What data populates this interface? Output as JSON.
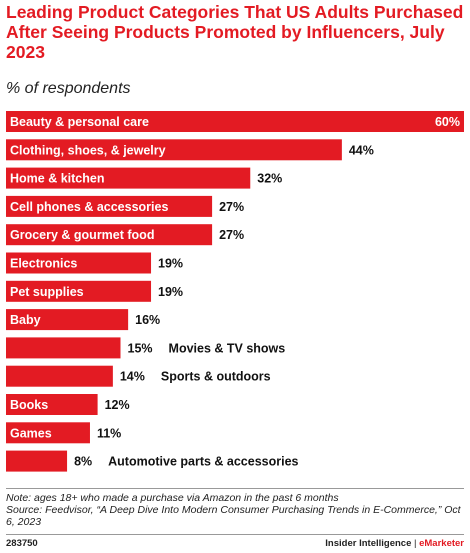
{
  "header": {
    "title": "Leading Product Categories That US Adults Purchased After Seeing Products Promoted by Influencers, July 2023",
    "subtitle": "% of respondents"
  },
  "chart_data": {
    "type": "bar",
    "orientation": "horizontal",
    "categories": [
      "Beauty & personal care",
      "Clothing, shoes, & jewelry",
      "Home & kitchen",
      "Cell phones & accessories",
      "Grocery & gourmet food",
      "Electronics",
      "Pet supplies",
      "Baby",
      "Movies & TV shows",
      "Sports & outdoors",
      "Books",
      "Games",
      "Automotive parts & accessories"
    ],
    "values": [
      60,
      44,
      32,
      27,
      27,
      19,
      19,
      16,
      15,
      14,
      12,
      11,
      8
    ],
    "value_labels": [
      "60%",
      "44%",
      "32%",
      "27%",
      "27%",
      "19%",
      "19%",
      "16%",
      "15%",
      "14%",
      "12%",
      "11%",
      "8%"
    ],
    "xlim": [
      0,
      60
    ],
    "bar_color": "#e31b23",
    "title": "Leading Product Categories That US Adults Purchased After Seeing Products Promoted by Influencers, July 2023",
    "subtitle": "% of respondents",
    "xlabel": "",
    "ylabel": ""
  },
  "footer": {
    "note": "Note: ages 18+ who made a purchase via Amazon in the past 6 months",
    "source": "Source: Feedvisor, “A Deep Dive Into Modern Consumer Purchasing Trends in E-Commerce,” Oct 6, 2023",
    "chart_id": "283750",
    "brand_left": "Insider Intelligence",
    "brand_sep": " | ",
    "brand_right": "eMarketer"
  }
}
